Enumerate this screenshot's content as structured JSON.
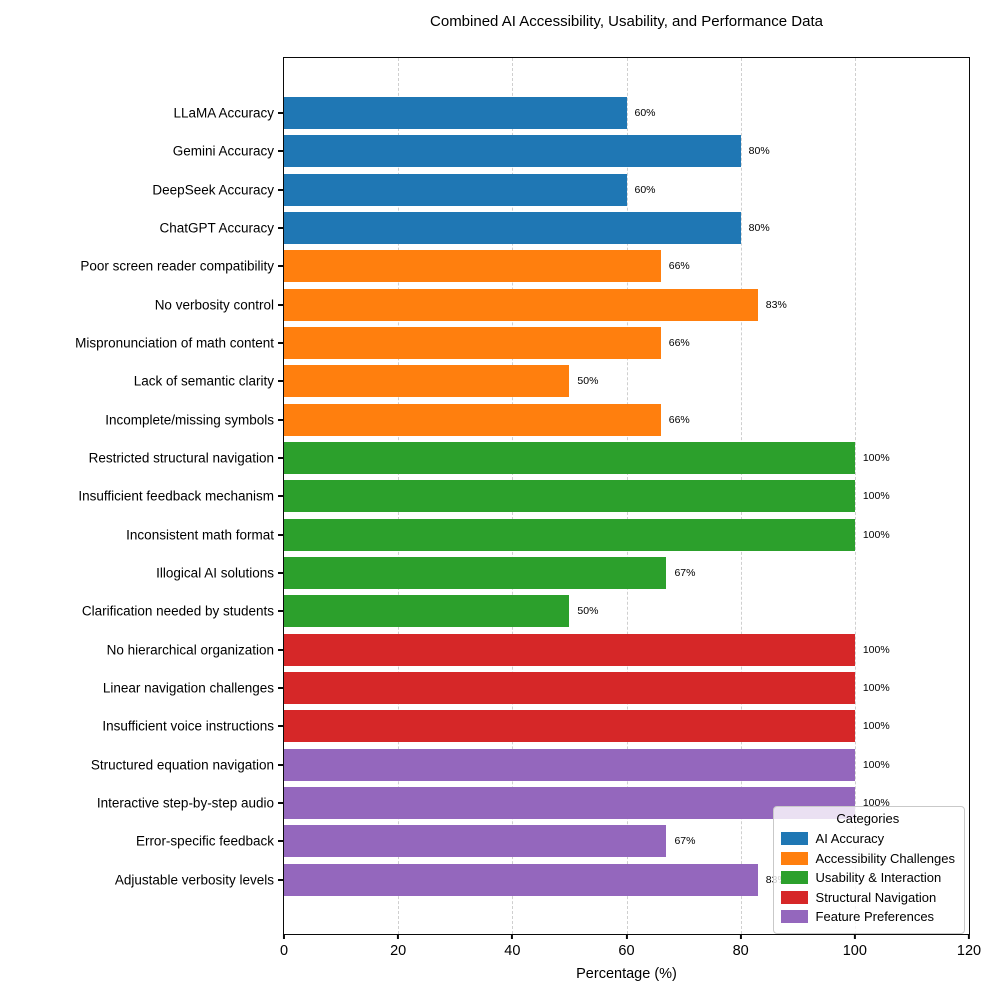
{
  "chart_data": {
    "type": "bar",
    "orientation": "horizontal",
    "title": "Combined AI Accessibility, Usability, and Performance Data",
    "xlabel": "Percentage (%)",
    "ylabel": "",
    "xlim": [
      0,
      120
    ],
    "x_ticks": [
      0,
      20,
      40,
      60,
      80,
      100,
      120
    ],
    "grid": "vertical-dashed",
    "categories": [
      "LLaMA Accuracy",
      "Gemini Accuracy",
      "DeepSeek Accuracy",
      "ChatGPT Accuracy",
      "Poor screen reader compatibility",
      "No verbosity control",
      "Mispronunciation of math content",
      "Lack of semantic clarity",
      "Incomplete/missing symbols",
      "Restricted structural navigation",
      "Insufficient feedback mechanism",
      "Inconsistent math format",
      "Illogical AI solutions",
      "Clarification needed by students",
      "No hierarchical organization",
      "Linear navigation challenges",
      "Insufficient voice instructions",
      "Structured equation navigation",
      "Interactive step-by-step audio",
      "Error-specific feedback",
      "Adjustable verbosity levels"
    ],
    "values": [
      60,
      80,
      60,
      80,
      66,
      83,
      66,
      50,
      66,
      100,
      100,
      100,
      67,
      50,
      100,
      100,
      100,
      100,
      100,
      67,
      83
    ],
    "value_labels": [
      "60%",
      "80%",
      "60%",
      "80%",
      "66%",
      "83%",
      "66%",
      "50%",
      "66%",
      "100%",
      "100%",
      "100%",
      "67%",
      "50%",
      "100%",
      "100%",
      "100%",
      "100%",
      "100%",
      "67%",
      "83%"
    ],
    "groups": [
      "AI Accuracy",
      "AI Accuracy",
      "AI Accuracy",
      "AI Accuracy",
      "Accessibility Challenges",
      "Accessibility Challenges",
      "Accessibility Challenges",
      "Accessibility Challenges",
      "Accessibility Challenges",
      "Usability & Interaction",
      "Usability & Interaction",
      "Usability & Interaction",
      "Usability & Interaction",
      "Usability & Interaction",
      "Structural Navigation",
      "Structural Navigation",
      "Structural Navigation",
      "Feature Preferences",
      "Feature Preferences",
      "Feature Preferences",
      "Feature Preferences"
    ],
    "colors": {
      "AI Accuracy": "#1f77b4",
      "Accessibility Challenges": "#ff7f0e",
      "Usability & Interaction": "#2ca02c",
      "Structural Navigation": "#d62728",
      "Feature Preferences": "#9467bd"
    },
    "legend": {
      "title": "Categories",
      "position": "lower right",
      "entries": [
        {
          "label": "AI Accuracy",
          "color": "#1f77b4"
        },
        {
          "label": "Accessibility Challenges",
          "color": "#ff7f0e"
        },
        {
          "label": "Usability & Interaction",
          "color": "#2ca02c"
        },
        {
          "label": "Structural Navigation",
          "color": "#d62728"
        },
        {
          "label": "Feature Preferences",
          "color": "#9467bd"
        }
      ]
    }
  }
}
